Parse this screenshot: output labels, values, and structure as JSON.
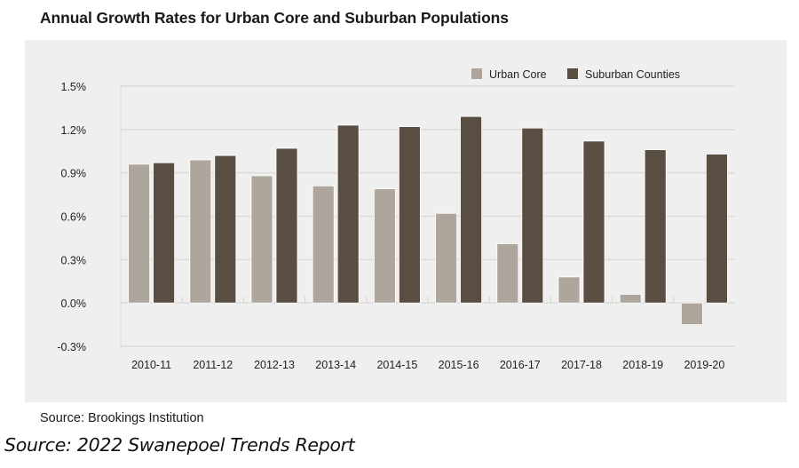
{
  "chart_data": {
    "type": "bar",
    "title": "Annual Growth Rates for Urban Core and Suburban Populations",
    "xlabel": "",
    "ylabel": "",
    "categories": [
      "2010-11",
      "2011-12",
      "2012-13",
      "2013-14",
      "2014-15",
      "2015-16",
      "2016-17",
      "2017-18",
      "2018-19",
      "2019-20"
    ],
    "series": [
      {
        "name": "Urban Core",
        "color": "#aea59d",
        "values": [
          0.96,
          0.99,
          0.88,
          0.81,
          0.79,
          0.62,
          0.41,
          0.18,
          0.06,
          -0.15
        ]
      },
      {
        "name": "Suburban Counties",
        "color": "#594e41",
        "values": [
          0.97,
          1.02,
          1.07,
          1.23,
          1.22,
          1.29,
          1.21,
          1.12,
          1.06,
          1.03
        ]
      }
    ],
    "ylim": [
      -0.3,
      1.5
    ],
    "yticks": [
      1.5,
      1.2,
      0.9,
      0.6,
      0.3,
      0.0,
      -0.3
    ],
    "ytick_labels": [
      "1.5%",
      "1.2%",
      "0.9%",
      "0.6%",
      "0.3%",
      "0.0%",
      "-0.3%"
    ],
    "grid": true,
    "legend_position": "top-right",
    "source": "Source: Brookings Institution",
    "caption": "Source: 2022 Swanepoel Trends Report"
  }
}
